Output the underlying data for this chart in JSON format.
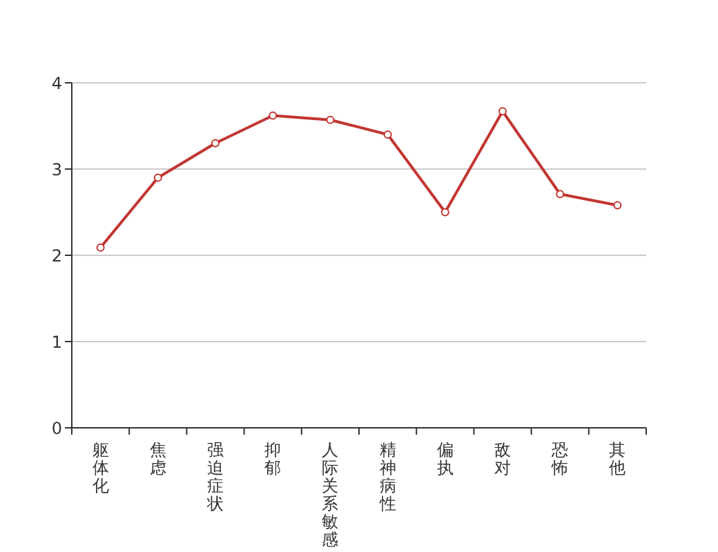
{
  "chart_data": {
    "type": "line",
    "categories": [
      "躯体化",
      "焦虑",
      "强迫症状",
      "抑郁",
      "人际关系敏感",
      "精神病性",
      "偏执",
      "敌对",
      "恐怖",
      "其他"
    ],
    "series": [
      {
        "color": "#c23531",
        "values": [
          2.09,
          2.9,
          3.3,
          3.62,
          3.57,
          3.4,
          2.5,
          3.67,
          2.71,
          2.58
        ]
      }
    ],
    "ylim": [
      0,
      4
    ],
    "yticks": [
      0,
      1,
      2,
      3,
      4
    ],
    "grid": "y",
    "marker": "circle",
    "line_style": "solid"
  }
}
